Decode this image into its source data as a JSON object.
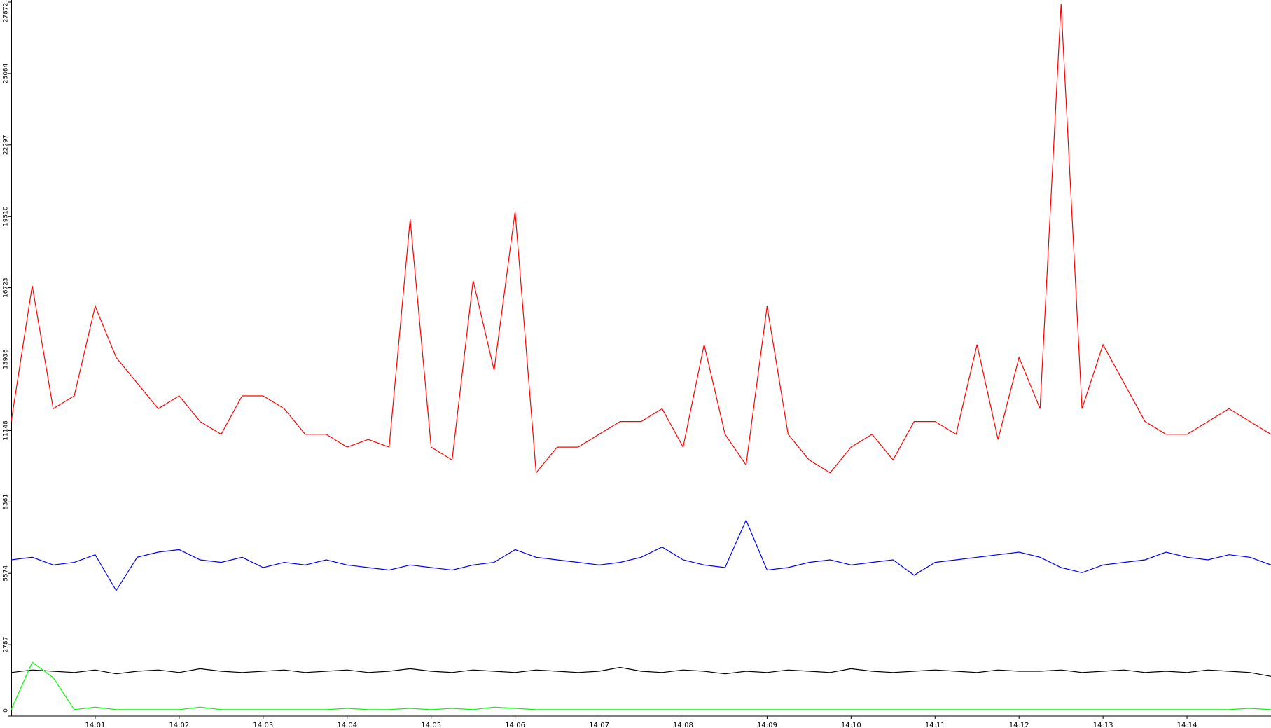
{
  "chart_data": {
    "type": "line",
    "categories": [
      null,
      null,
      null,
      null,
      "14:01",
      null,
      null,
      null,
      "14:02",
      null,
      null,
      null,
      "14:03",
      null,
      null,
      null,
      "14:04",
      null,
      null,
      null,
      "14:05",
      null,
      null,
      null,
      "14:06",
      null,
      null,
      null,
      "14:07",
      null,
      null,
      null,
      "14:08",
      null,
      null,
      null,
      "14:09",
      null,
      null,
      null,
      "14:10",
      null,
      null,
      null,
      "14:11",
      null,
      null,
      null,
      "14:12",
      null,
      null,
      null,
      "14:13",
      null,
      null,
      null,
      "14:14",
      null,
      null,
      null,
      null
    ],
    "series": [
      {
        "color": "#ff0000",
        "values": [
          11500,
          16800,
          12000,
          12500,
          16000,
          14000,
          13000,
          12000,
          12500,
          11500,
          11000,
          12500,
          12500,
          12000,
          11000,
          11000,
          10500,
          10800,
          10500,
          19400,
          10500,
          10000,
          17000,
          13500,
          19700,
          9500,
          10500,
          10500,
          11000,
          11500,
          11500,
          12000,
          10500,
          14500,
          11000,
          9800,
          16000,
          11000,
          10000,
          9500,
          10500,
          11000,
          10000,
          11500,
          11500,
          11000,
          14500,
          10800,
          14000,
          12000,
          27800,
          12000,
          14500,
          13000,
          11500,
          11000,
          11000,
          11500,
          12000,
          11500,
          11000
        ]
      },
      {
        "color": "#0000ff",
        "values": [
          6100,
          6200,
          5900,
          6000,
          6300,
          4900,
          6200,
          6400,
          6500,
          6100,
          6000,
          6200,
          5800,
          6000,
          5900,
          6100,
          5900,
          5800,
          5700,
          5900,
          5800,
          5700,
          5900,
          6000,
          6500,
          6200,
          6100,
          6000,
          5900,
          6000,
          6200,
          6600,
          6100,
          5900,
          5800,
          7650,
          5700,
          5800,
          6000,
          6100,
          5900,
          6000,
          6100,
          5500,
          6000,
          6100,
          6200,
          6300,
          6400,
          6200,
          5800,
          5600,
          5900,
          6000,
          6100,
          6400,
          6200,
          6100,
          6300,
          6200,
          5900
        ]
      },
      {
        "color": "#000000",
        "values": [
          1700,
          1800,
          1750,
          1700,
          1800,
          1650,
          1750,
          1800,
          1700,
          1850,
          1750,
          1700,
          1750,
          1800,
          1700,
          1750,
          1800,
          1700,
          1750,
          1850,
          1750,
          1700,
          1800,
          1750,
          1700,
          1800,
          1750,
          1700,
          1750,
          1900,
          1750,
          1700,
          1800,
          1750,
          1650,
          1750,
          1700,
          1800,
          1750,
          1700,
          1850,
          1750,
          1700,
          1750,
          1800,
          1750,
          1700,
          1800,
          1750,
          1750,
          1800,
          1700,
          1750,
          1800,
          1700,
          1750,
          1700,
          1800,
          1750,
          1700,
          1550
        ]
      },
      {
        "color": "#00ff00",
        "values": [
          250,
          2100,
          1500,
          250,
          350,
          250,
          250,
          250,
          250,
          350,
          250,
          250,
          250,
          250,
          250,
          250,
          300,
          250,
          250,
          300,
          250,
          300,
          250,
          350,
          300,
          250,
          250,
          250,
          250,
          250,
          250,
          250,
          250,
          250,
          250,
          250,
          250,
          250,
          250,
          250,
          250,
          250,
          250,
          250,
          250,
          250,
          250,
          250,
          250,
          250,
          250,
          250,
          250,
          250,
          250,
          250,
          250,
          250,
          250,
          300,
          250
        ]
      }
    ],
    "ylim": [
      0,
      27872
    ],
    "yticks": [
      0,
      2787,
      5574,
      8361,
      11148,
      13936,
      16723,
      19510,
      22297,
      25084,
      27872
    ]
  }
}
